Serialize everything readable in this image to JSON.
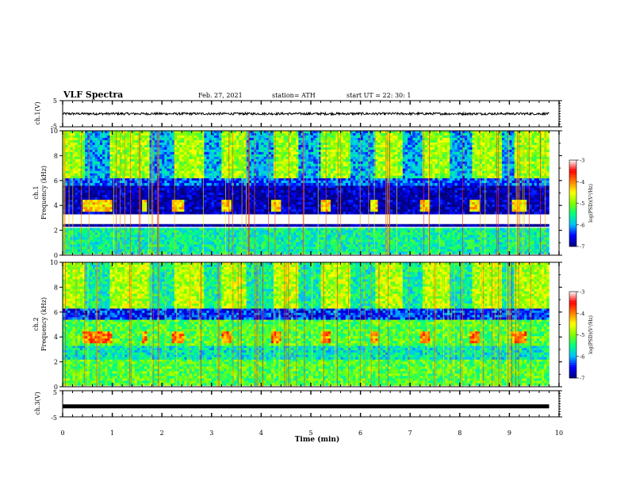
{
  "header": {
    "title": "VLF Spectra",
    "date": "Feb. 27, 2021",
    "station": "station= ATH",
    "start": "start  UT  =   22: 30: 1"
  },
  "chart_data": [
    {
      "id": "ch1-waveform",
      "type": "line",
      "ylabel": "ch.1(V)",
      "ylim": [
        -5,
        5
      ],
      "y_ticks": [
        "5",
        "-5"
      ],
      "xlim": [
        0,
        10
      ],
      "signal": {
        "mean": 0,
        "noise_amplitude": 0.45,
        "x_end": 9.8
      },
      "color": "#000000"
    },
    {
      "id": "ch1-spectrogram",
      "type": "heatmap",
      "ylabel": "ch.1\nFrequency (kHz)",
      "ylabel_lines": [
        "ch.1",
        "Frequency (kHz)"
      ],
      "ylim": [
        0,
        10
      ],
      "y_ticks": [
        "0",
        "2",
        "4",
        "6",
        "8",
        "10"
      ],
      "xlim": [
        0,
        10
      ],
      "data_end_min": 9.8,
      "colorbar": {
        "label": "log(PSD)(V²/Hz)",
        "range": [
          -7,
          -3
        ],
        "ticks": [
          "-3",
          "-4",
          "-5",
          "-6",
          "-7"
        ],
        "colors": [
          "#000080",
          "#0000ff",
          "#00c0ff",
          "#00ff80",
          "#80ff00",
          "#ffff00",
          "#ff8000",
          "#ff0000",
          "#ffffff"
        ]
      },
      "bands": [
        {
          "f": [
            0.1,
            2.2
          ],
          "level": -5.6,
          "description": "horizontal striations"
        },
        {
          "f": [
            2.3,
            2.5
          ],
          "level": -6.9
        },
        {
          "f": [
            3.3,
            5.6
          ],
          "level": -6.8,
          "bursts_level": -4.4
        },
        {
          "f": [
            5.6,
            6.2
          ],
          "level": -6.3
        },
        {
          "f": [
            6.2,
            10.0
          ],
          "level": -4.9,
          "gap_level": -6.0
        }
      ],
      "bursts_min": [
        [
          0.4,
          1.0
        ],
        [
          1.6,
          1.7
        ],
        [
          2.2,
          2.45
        ],
        [
          3.2,
          3.4
        ],
        [
          4.2,
          4.4
        ],
        [
          5.2,
          5.4
        ],
        [
          6.2,
          6.35
        ],
        [
          7.2,
          7.4
        ],
        [
          8.2,
          8.4
        ],
        [
          9.05,
          9.35
        ]
      ],
      "high_band_gaps_min": [
        [
          0.45,
          0.95
        ],
        [
          1.75,
          2.25
        ],
        [
          2.85,
          3.2
        ],
        [
          3.7,
          4.25
        ],
        [
          4.75,
          5.2
        ],
        [
          5.8,
          6.3
        ],
        [
          6.85,
          7.25
        ],
        [
          7.8,
          8.25
        ],
        [
          8.85,
          9.1
        ]
      ]
    },
    {
      "id": "ch2-spectrogram",
      "type": "heatmap",
      "ylabel": "ch.2\nFrequency (kHz)",
      "ylabel_lines": [
        "ch.2",
        "Frequency (kHz)"
      ],
      "ylim": [
        0,
        10
      ],
      "y_ticks": [
        "0",
        "2",
        "4",
        "6",
        "8",
        "10"
      ],
      "xlim": [
        0,
        10
      ],
      "data_end_min": 9.8,
      "colorbar": {
        "label": "log(PSD)(V²/Hz)",
        "range": [
          -7,
          -3
        ],
        "ticks": [
          "-3",
          "-4",
          "-5",
          "-6",
          "-7"
        ],
        "colors": [
          "#000080",
          "#0000ff",
          "#00c0ff",
          "#00ff80",
          "#80ff00",
          "#ffff00",
          "#ff8000",
          "#ff0000",
          "#ffffff"
        ]
      },
      "bands": [
        {
          "f": [
            0.1,
            2.2
          ],
          "level": -5.2,
          "description": "horizontal striations"
        },
        {
          "f": [
            2.2,
            3.3
          ],
          "level": -5.7
        },
        {
          "f": [
            3.3,
            5.4
          ],
          "level": -5.2,
          "bursts_level": -4.0
        },
        {
          "f": [
            5.4,
            6.3
          ],
          "level": -6.4
        },
        {
          "f": [
            6.3,
            10.0
          ],
          "level": -4.8,
          "gap_level": -5.6
        }
      ],
      "bursts_min": [
        [
          0.4,
          1.0
        ],
        [
          1.6,
          1.7
        ],
        [
          2.2,
          2.45
        ],
        [
          3.2,
          3.4
        ],
        [
          4.2,
          4.4
        ],
        [
          5.2,
          5.4
        ],
        [
          6.2,
          6.35
        ],
        [
          7.2,
          7.4
        ],
        [
          8.2,
          8.4
        ],
        [
          9.05,
          9.35
        ]
      ],
      "high_band_gaps_min": [
        [
          0.45,
          0.95
        ],
        [
          1.75,
          2.25
        ],
        [
          2.85,
          3.2
        ],
        [
          3.7,
          4.25
        ],
        [
          4.75,
          5.2
        ],
        [
          5.8,
          6.3
        ],
        [
          6.85,
          7.25
        ],
        [
          7.8,
          8.25
        ],
        [
          8.85,
          9.1
        ]
      ]
    },
    {
      "id": "ch3-waveform",
      "type": "line",
      "ylabel": "ch.3(V)",
      "ylim": [
        -5,
        5
      ],
      "y_ticks": [
        "5",
        "-5"
      ],
      "xlim": [
        0,
        10
      ],
      "signal": {
        "mean": -1,
        "noise_amplitude": 0.0,
        "x_end": 9.8,
        "line_weight": "thick"
      },
      "color": "#000000"
    }
  ],
  "x_axis": {
    "label": "Time (min)",
    "ticks": [
      "0",
      "1",
      "2",
      "3",
      "4",
      "5",
      "6",
      "7",
      "8",
      "9",
      "10"
    ],
    "range": [
      0,
      10
    ]
  }
}
